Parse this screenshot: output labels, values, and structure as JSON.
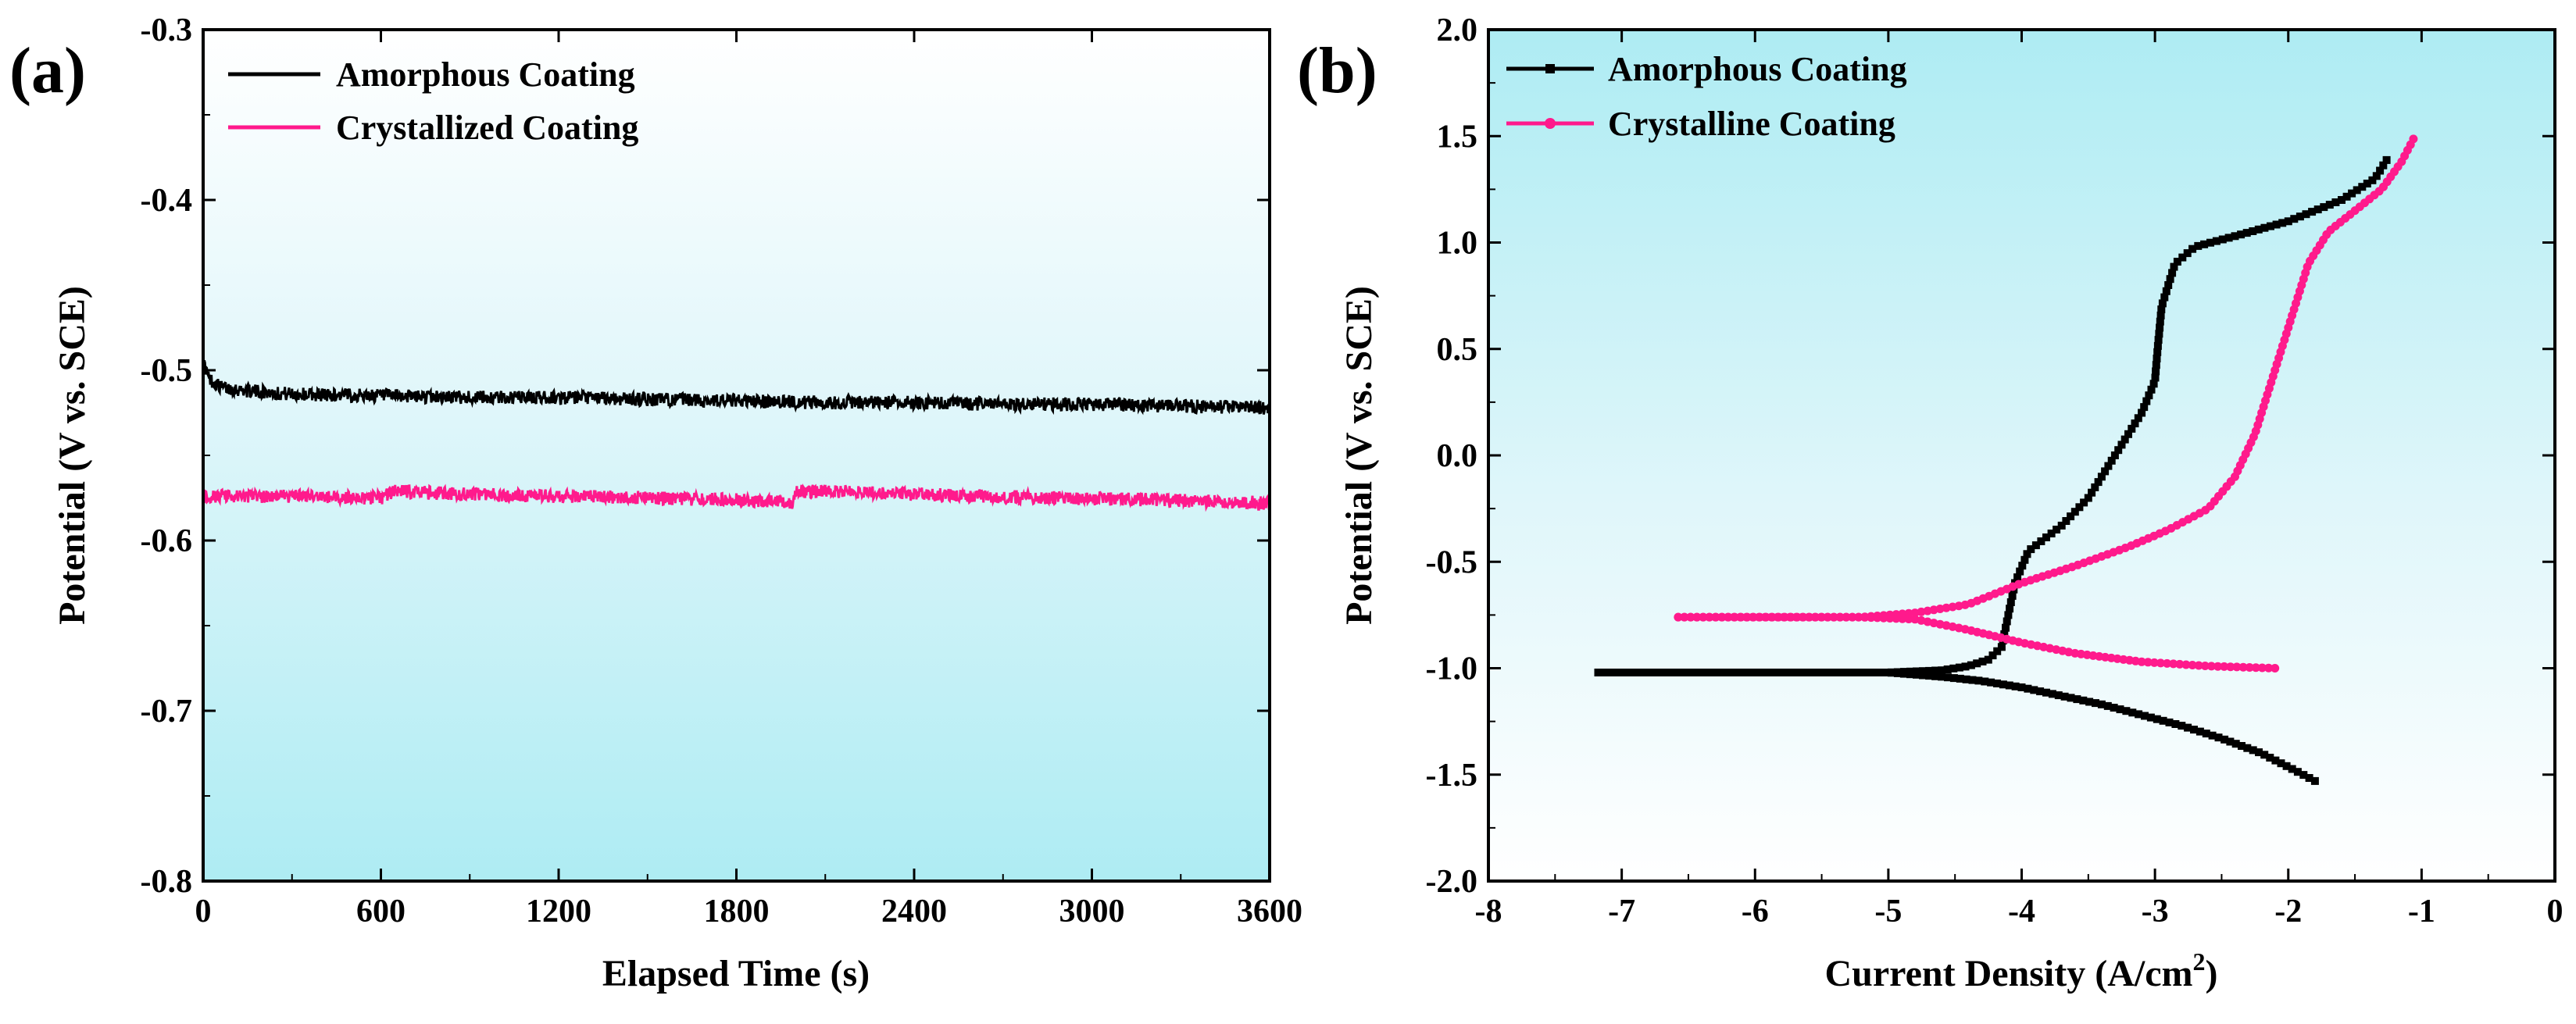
{
  "chart_data": [
    {
      "panel": "(a)",
      "type": "line",
      "title": "",
      "xlabel": "Elapsed Time (s)",
      "ylabel": "Potential (V vs. SCE)",
      "xlim": [
        0,
        3600
      ],
      "ylim": [
        -0.8,
        -0.3
      ],
      "xticks": [
        0,
        600,
        1200,
        1800,
        2400,
        3000,
        3600
      ],
      "yticks": [
        -0.8,
        -0.7,
        -0.6,
        -0.5,
        -0.4,
        -0.3
      ],
      "xtick_labels": [
        "0",
        "600",
        "1200",
        "1800",
        "2400",
        "3000",
        "3600"
      ],
      "ytick_labels": [
        "-0.8",
        "-0.7",
        "-0.6",
        "-0.5",
        "-0.4",
        "-0.3"
      ],
      "grid": false,
      "legend_position": "top-left",
      "series": [
        {
          "name": "Amorphous Coating",
          "color": "#000000",
          "noise": 0.004,
          "x": [
            0,
            20,
            60,
            150,
            300,
            600,
            900,
            1200,
            1500,
            1800,
            2100,
            2400,
            2700,
            3000,
            3300,
            3600
          ],
          "y": [
            -0.495,
            -0.505,
            -0.51,
            -0.512,
            -0.514,
            -0.515,
            -0.516,
            -0.516,
            -0.517,
            -0.518,
            -0.519,
            -0.519,
            -0.52,
            -0.52,
            -0.521,
            -0.522
          ]
        },
        {
          "name": "Crystallized Coating",
          "color": "#ff1a8c",
          "noise": 0.004,
          "x": [
            0,
            300,
            600,
            650,
            900,
            1200,
            1500,
            1800,
            1990,
            2000,
            2300,
            2600,
            2900,
            3200,
            3600
          ],
          "y": [
            -0.574,
            -0.574,
            -0.575,
            -0.571,
            -0.573,
            -0.574,
            -0.575,
            -0.576,
            -0.578,
            -0.571,
            -0.572,
            -0.574,
            -0.575,
            -0.576,
            -0.578
          ]
        }
      ]
    },
    {
      "panel": "(b)",
      "type": "line",
      "title": "",
      "xlabel": "Current Density (A/cm",
      "xlabel_sup": "2",
      "xlabel_end": ")",
      "ylabel": "Potential (V vs. SCE)",
      "xlim": [
        -8,
        0
      ],
      "ylim": [
        -2.0,
        2.0
      ],
      "xticks": [
        -8,
        -7,
        -6,
        -5,
        -4,
        -3,
        -2,
        -1,
        0
      ],
      "yticks": [
        -2.0,
        -1.5,
        -1.0,
        -0.5,
        0.0,
        0.5,
        1.0,
        1.5,
        2.0
      ],
      "xtick_labels": [
        "-8",
        "-7",
        "-6",
        "-5",
        "-4",
        "-3",
        "-2",
        "-1",
        "0"
      ],
      "ytick_labels": [
        "-2.0",
        "-1.5",
        "-1.0",
        "-0.5",
        "0.0",
        "0.5",
        "1.0",
        "1.5",
        "2.0"
      ],
      "grid": false,
      "legend_position": "top-left",
      "series": [
        {
          "name": "Amorphous Coating",
          "color": "#000000",
          "points": [
            [
              -1.8,
              -1.53
            ],
            [
              -1.95,
              -1.48
            ],
            [
              -2.2,
              -1.4
            ],
            [
              -2.5,
              -1.33
            ],
            [
              -2.8,
              -1.27
            ],
            [
              -3.1,
              -1.22
            ],
            [
              -3.4,
              -1.17
            ],
            [
              -3.7,
              -1.13
            ],
            [
              -4.0,
              -1.09
            ],
            [
              -4.3,
              -1.06
            ],
            [
              -4.6,
              -1.04
            ],
            [
              -5.0,
              -1.02
            ],
            [
              -5.5,
              -1.02
            ],
            [
              -6.1,
              -1.02
            ],
            [
              -7.2,
              -1.02
            ],
            [
              -5.0,
              -1.02
            ],
            [
              -4.6,
              -1.01
            ],
            [
              -4.4,
              -0.99
            ],
            [
              -4.25,
              -0.96
            ],
            [
              -4.15,
              -0.9
            ],
            [
              -4.1,
              -0.75
            ],
            [
              -4.05,
              -0.6
            ],
            [
              -3.95,
              -0.45
            ],
            [
              -3.7,
              -0.33
            ],
            [
              -3.5,
              -0.2
            ],
            [
              -3.3,
              0.0
            ],
            [
              -3.1,
              0.2
            ],
            [
              -3.0,
              0.35
            ],
            [
              -2.98,
              0.5
            ],
            [
              -2.95,
              0.7
            ],
            [
              -2.85,
              0.9
            ],
            [
              -2.7,
              0.98
            ],
            [
              -2.4,
              1.03
            ],
            [
              -2.0,
              1.1
            ],
            [
              -1.6,
              1.2
            ],
            [
              -1.35,
              1.3
            ],
            [
              -1.25,
              1.4
            ]
          ]
        },
        {
          "name": "Crystalline Coating",
          "color": "#ff1a8c",
          "points": [
            [
              -2.1,
              -1.0
            ],
            [
              -2.6,
              -0.99
            ],
            [
              -3.1,
              -0.97
            ],
            [
              -3.6,
              -0.93
            ],
            [
              -4.0,
              -0.88
            ],
            [
              -4.4,
              -0.82
            ],
            [
              -4.8,
              -0.77
            ],
            [
              -5.2,
              -0.76
            ],
            [
              -5.8,
              -0.76
            ],
            [
              -6.6,
              -0.76
            ],
            [
              -5.2,
              -0.76
            ],
            [
              -4.8,
              -0.74
            ],
            [
              -4.4,
              -0.7
            ],
            [
              -4.0,
              -0.6
            ],
            [
              -3.6,
              -0.52
            ],
            [
              -3.2,
              -0.43
            ],
            [
              -2.9,
              -0.35
            ],
            [
              -2.6,
              -0.25
            ],
            [
              -2.4,
              -0.1
            ],
            [
              -2.25,
              0.1
            ],
            [
              -2.15,
              0.3
            ],
            [
              -2.05,
              0.5
            ],
            [
              -1.95,
              0.7
            ],
            [
              -1.85,
              0.9
            ],
            [
              -1.7,
              1.05
            ],
            [
              -1.5,
              1.15
            ],
            [
              -1.3,
              1.25
            ],
            [
              -1.15,
              1.38
            ],
            [
              -1.05,
              1.5
            ]
          ]
        }
      ]
    }
  ]
}
